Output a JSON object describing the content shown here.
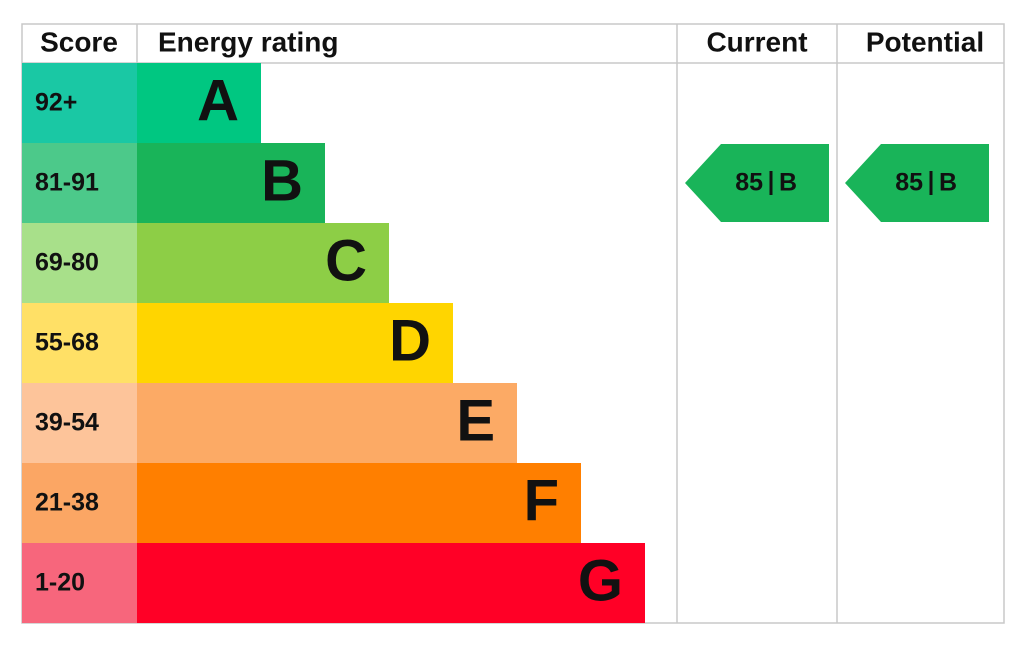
{
  "header": {
    "score": "Score",
    "rating": "Energy rating",
    "current": "Current",
    "potential": "Potential"
  },
  "bands": [
    {
      "score": "92+",
      "letter": "A"
    },
    {
      "score": "81-91",
      "letter": "B"
    },
    {
      "score": "69-80",
      "letter": "C"
    },
    {
      "score": "55-68",
      "letter": "D"
    },
    {
      "score": "39-54",
      "letter": "E"
    },
    {
      "score": "21-38",
      "letter": "F"
    },
    {
      "score": "1-20",
      "letter": "G"
    }
  ],
  "current": {
    "value": 85,
    "letter": "B"
  },
  "potential": {
    "value": 85,
    "letter": "B"
  }
}
